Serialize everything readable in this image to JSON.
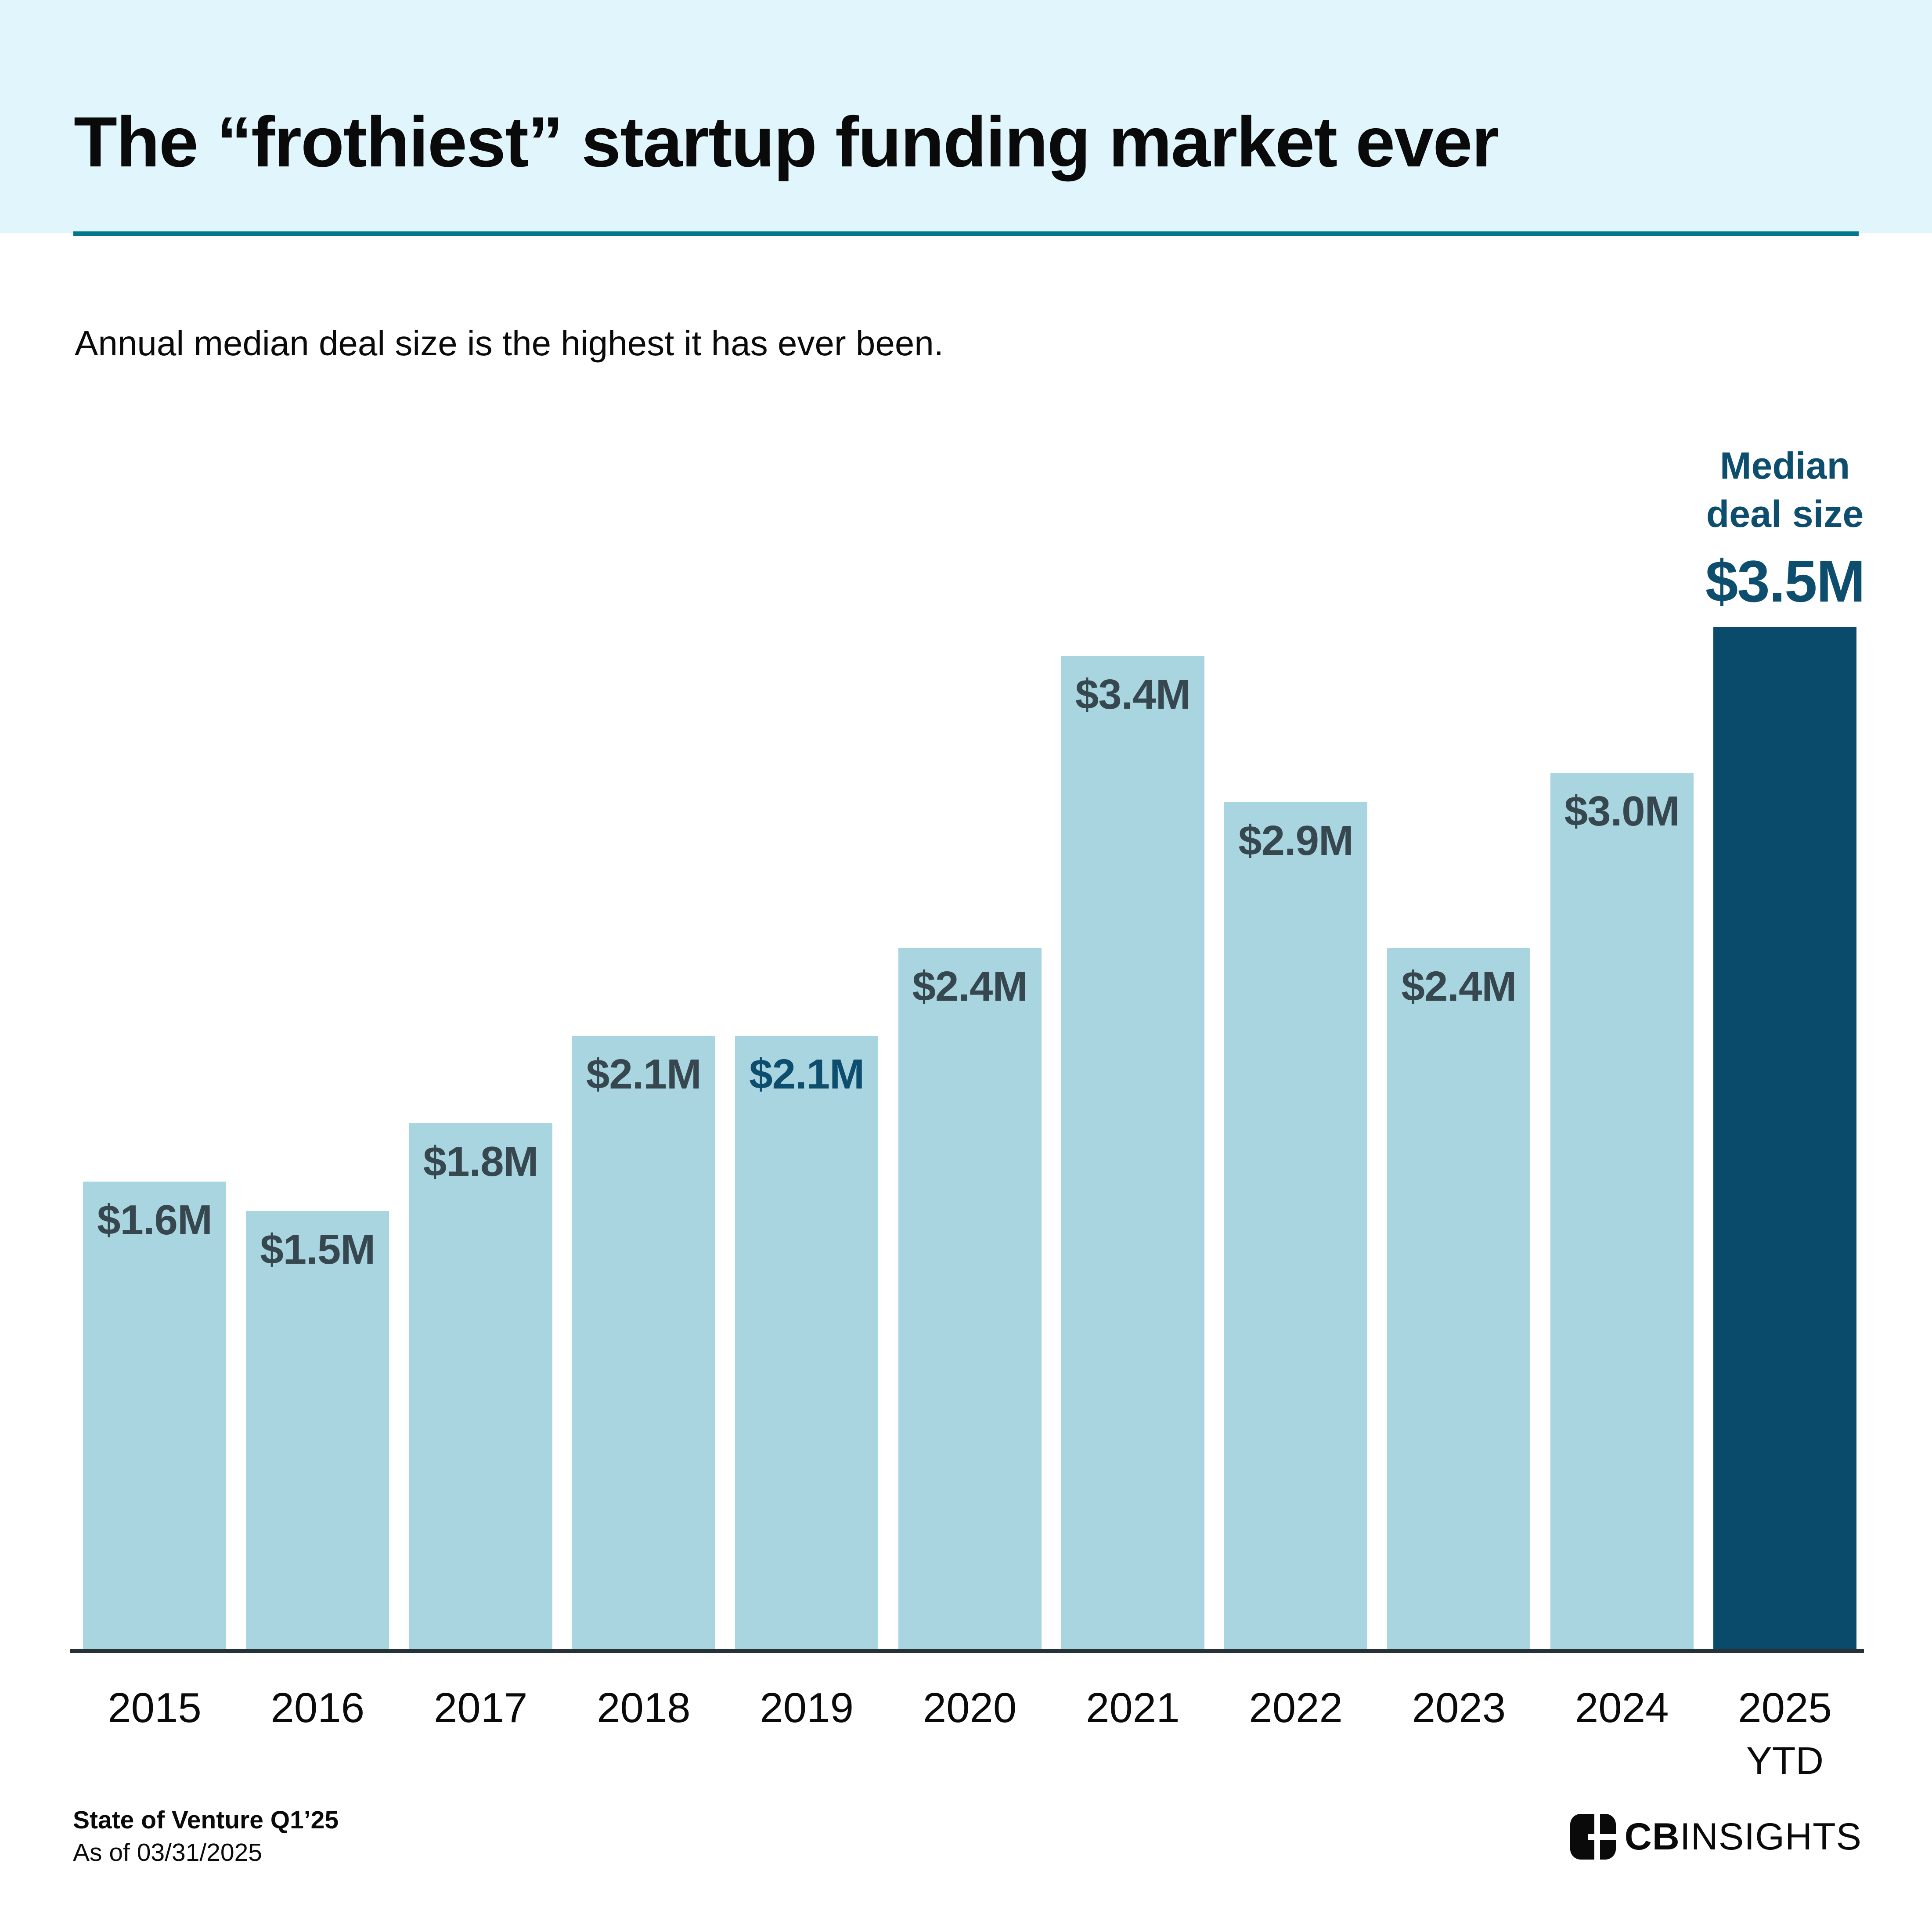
{
  "header": {
    "title": "The “frothiest” startup funding market ever",
    "subtitle": "Annual median deal size is the highest it has ever been."
  },
  "annotation": {
    "line1": "Median",
    "line2": "deal size",
    "value": "$3.5M"
  },
  "footer": {
    "source": "State of Venture Q1’25",
    "as_of": "As of 03/31/2025"
  },
  "logo": {
    "mark": "cbinsights-grid-mark",
    "brand_bold": "CB",
    "brand_rest": "INSIGHTS"
  },
  "colors": {
    "header_band": "#e0f6fc",
    "divider_teal": "#00798c",
    "light_bar": "#a8d5e0",
    "dark_bar": "#0a4a6b",
    "slate_label": "#37474f",
    "teal_label": "#0d4d6e",
    "axis": "#263238",
    "annotation_text": "#0d4d6e"
  },
  "chart_data": {
    "type": "bar",
    "title": "Annual median deal size ($M), 2015 - 2025 YTD",
    "unit": "$M",
    "ylim": [
      0,
      3.5
    ],
    "grid": false,
    "legend": "none",
    "categories": [
      "2015",
      "2016",
      "2017",
      "2018",
      "2019",
      "2020",
      "2021",
      "2022",
      "2023",
      "2024",
      "2025 YTD"
    ],
    "bars": [
      {
        "year": "2015",
        "value": 1.6,
        "label": "$1.6M",
        "label_color": "slate",
        "bar_style": "light",
        "label_position": "inside"
      },
      {
        "year": "2016",
        "value": 1.5,
        "label": "$1.5M",
        "label_color": "slate",
        "bar_style": "light",
        "label_position": "inside"
      },
      {
        "year": "2017",
        "value": 1.8,
        "label": "$1.8M",
        "label_color": "slate",
        "bar_style": "light",
        "label_position": "inside"
      },
      {
        "year": "2018",
        "value": 2.1,
        "label": "$2.1M",
        "label_color": "slate",
        "bar_style": "light",
        "label_position": "inside"
      },
      {
        "year": "2019",
        "value": 2.1,
        "label": "$2.1M",
        "label_color": "teal",
        "bar_style": "light",
        "label_position": "inside"
      },
      {
        "year": "2020",
        "value": 2.4,
        "label": "$2.4M",
        "label_color": "slate",
        "bar_style": "light",
        "label_position": "inside"
      },
      {
        "year": "2021",
        "value": 3.4,
        "label": "$3.4M",
        "label_color": "slate",
        "bar_style": "light",
        "label_position": "inside"
      },
      {
        "year": "2022",
        "value": 2.9,
        "label": "$2.9M",
        "label_color": "slate",
        "bar_style": "light",
        "label_position": "inside"
      },
      {
        "year": "2023",
        "value": 2.4,
        "label": "$2.4M",
        "label_color": "slate",
        "bar_style": "light",
        "label_position": "inside"
      },
      {
        "year": "2024",
        "value": 3.0,
        "label": "$3.0M",
        "label_color": "slate",
        "bar_style": "light",
        "label_position": "inside"
      },
      {
        "year": "2025",
        "sublabel": "YTD",
        "value": 3.5,
        "label": "$3.5M",
        "label_color": "teal",
        "bar_style": "dark",
        "label_position": "annotation"
      }
    ]
  }
}
